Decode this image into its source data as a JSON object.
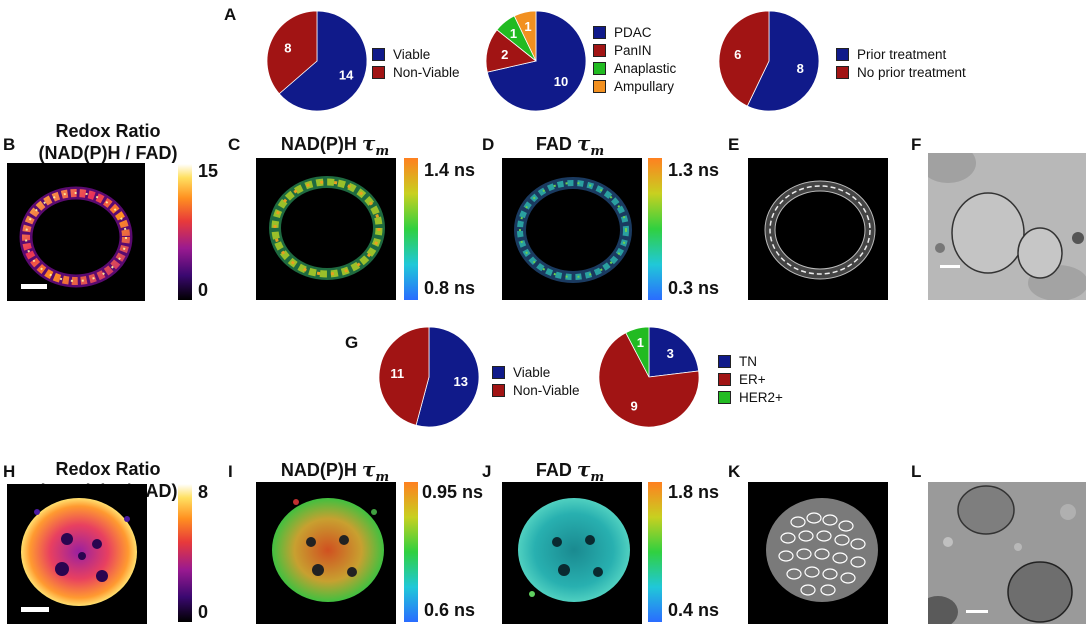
{
  "panel_letters": {
    "A": "A",
    "B": "B",
    "C": "C",
    "D": "D",
    "E": "E",
    "F": "F",
    "G": "G",
    "H": "H",
    "I": "I",
    "J": "J",
    "K": "K",
    "L": "L"
  },
  "titles": {
    "redox_line1": "Redox Ratio",
    "redox_line2": "(NAD(P)H / FAD)",
    "nadph": "NAD(P)H",
    "fad": "FAD",
    "tau": "τ",
    "tau_sub": "m"
  },
  "colorbars": {
    "B": {
      "max": "15",
      "min": "0"
    },
    "C": {
      "max": "1.4 ns",
      "min": "0.8 ns"
    },
    "D": {
      "max": "1.3 ns",
      "min": "0.3 ns"
    },
    "H": {
      "max": "8",
      "min": "0"
    },
    "I": {
      "max": "0.95 ns",
      "min": "0.6 ns"
    },
    "J": {
      "max": "1.8 ns",
      "min": "0.4 ns"
    }
  },
  "colors": {
    "blue": "#101a8a",
    "red": "#a11414",
    "green": "#22bb22",
    "orange": "#f29020"
  },
  "chart_data": [
    {
      "type": "pie",
      "panel": "A",
      "labels": [
        "Viable",
        "Non-Viable"
      ],
      "values": [
        14,
        8
      ],
      "colors": [
        "#101a8a",
        "#a11414"
      ]
    },
    {
      "type": "pie",
      "panel": "A",
      "labels": [
        "PDAC",
        "PanIN",
        "Anaplastic",
        "Ampullary"
      ],
      "values": [
        10,
        2,
        1,
        1
      ],
      "colors": [
        "#101a8a",
        "#a11414",
        "#22bb22",
        "#f29020"
      ]
    },
    {
      "type": "pie",
      "panel": "A",
      "labels": [
        "Prior treatment",
        "No prior treatment"
      ],
      "values": [
        8,
        6
      ],
      "colors": [
        "#101a8a",
        "#a11414"
      ]
    },
    {
      "type": "pie",
      "panel": "G",
      "labels": [
        "Viable",
        "Non-Viable"
      ],
      "values": [
        13,
        11
      ],
      "colors": [
        "#101a8a",
        "#a11414"
      ]
    },
    {
      "type": "pie",
      "panel": "G",
      "labels": [
        "TN",
        "ER+",
        "HER2+"
      ],
      "values": [
        3,
        9,
        1
      ],
      "colors": [
        "#101a8a",
        "#a11414",
        "#22bb22"
      ]
    }
  ]
}
